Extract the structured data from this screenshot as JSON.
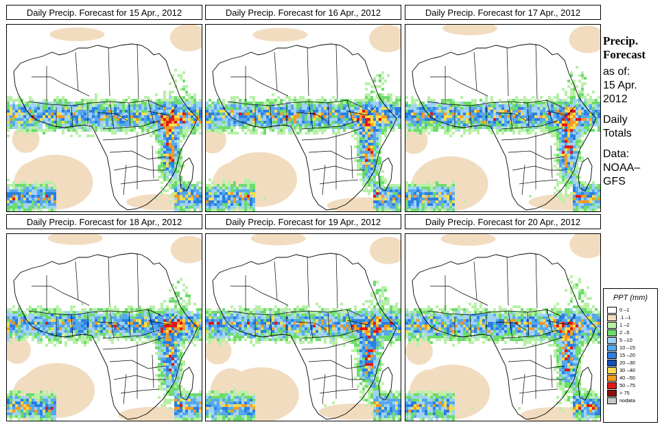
{
  "panels": [
    {
      "title": "Daily Precip. Forecast for  15 Apr., 2012"
    },
    {
      "title": "Daily Precip. Forecast for  16 Apr., 2012"
    },
    {
      "title": "Daily Precip. Forecast for  17 Apr., 2012"
    },
    {
      "title": "Daily Precip. Forecast for  18 Apr., 2012"
    },
    {
      "title": "Daily Precip. Forecast for  19 Apr., 2012"
    },
    {
      "title": "Daily Precip. Forecast for  20 Apr., 2012"
    }
  ],
  "sidebar": {
    "heading_line1": "Precip.",
    "heading_line2": "Forecast",
    "asof_line1": "as of:",
    "asof_line2": "15 Apr.",
    "asof_line3": "2012",
    "type_line1": "Daily",
    "type_line2": "Totals",
    "source_line1": "Data:",
    "source_line2": "NOAA–",
    "source_line3": "GFS"
  },
  "legend": {
    "title": "PPT (mm)",
    "items": [
      {
        "label": "0 –1",
        "color": "#ffffff"
      },
      {
        "label": ".1 –1",
        "color": "#f2dcc0"
      },
      {
        "label": "1 –2",
        "color": "#b8f0a8"
      },
      {
        "label": "2 –5",
        "color": "#6cdc6c"
      },
      {
        "label": "5 –10",
        "color": "#9fd2f5"
      },
      {
        "label": "10 –15",
        "color": "#56a8ec"
      },
      {
        "label": "15 –20",
        "color": "#2a7fe0"
      },
      {
        "label": "20 –30",
        "color": "#1450b8"
      },
      {
        "label": "30 –40",
        "color": "#f7dc50"
      },
      {
        "label": "40 –50",
        "color": "#f59a20"
      },
      {
        "label": "50 –75",
        "color": "#e01818"
      },
      {
        "label": "> 75",
        "color": "#8b1010"
      },
      {
        "label": "nodata",
        "color": "#c8c8c8"
      }
    ]
  }
}
